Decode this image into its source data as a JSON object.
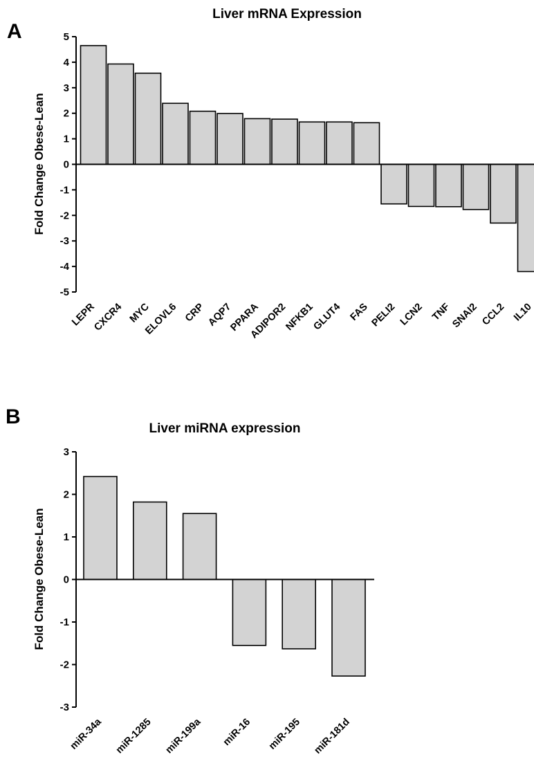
{
  "chart_data": [
    {
      "panel": "A",
      "type": "bar",
      "title": "Liver mRNA Expression",
      "xlabel": "",
      "ylabel": "Fold Change Obese-Lean",
      "ylim": [
        -5,
        5
      ],
      "yticks": [
        "-5",
        "-4",
        "-3",
        "-2",
        "-1",
        "0",
        "1",
        "2",
        "3",
        "4",
        "5"
      ],
      "grid": false,
      "categories": [
        "LEPR",
        "CXCR4",
        "MYC",
        "ELOVL6",
        "CRP",
        "AQP7",
        "PPARA",
        "ADIPOR2",
        "NFKB1",
        "GLUT4",
        "FAS",
        "PELI2",
        "LCN2",
        "TNF",
        "SNAI2",
        "CCL2",
        "IL10"
      ],
      "values": [
        4.65,
        3.93,
        3.57,
        2.39,
        2.08,
        1.99,
        1.79,
        1.77,
        1.66,
        1.66,
        1.63,
        -1.55,
        -1.65,
        -1.66,
        -1.77,
        -2.3,
        -4.2
      ]
    },
    {
      "panel": "B",
      "type": "bar",
      "title": "Liver miRNA expression",
      "xlabel": "",
      "ylabel": "Fold Change Obese-Lean",
      "ylim": [
        -3,
        3
      ],
      "yticks": [
        "-3",
        "-2",
        "-1",
        "0",
        "1",
        "2",
        "3"
      ],
      "grid": false,
      "categories": [
        "miR-34a",
        "miR-1285",
        "miR-199a",
        "miR-16",
        "miR-195",
        "miR-181d"
      ],
      "values": [
        2.42,
        1.82,
        1.55,
        -1.55,
        -1.63,
        -2.27
      ]
    }
  ]
}
